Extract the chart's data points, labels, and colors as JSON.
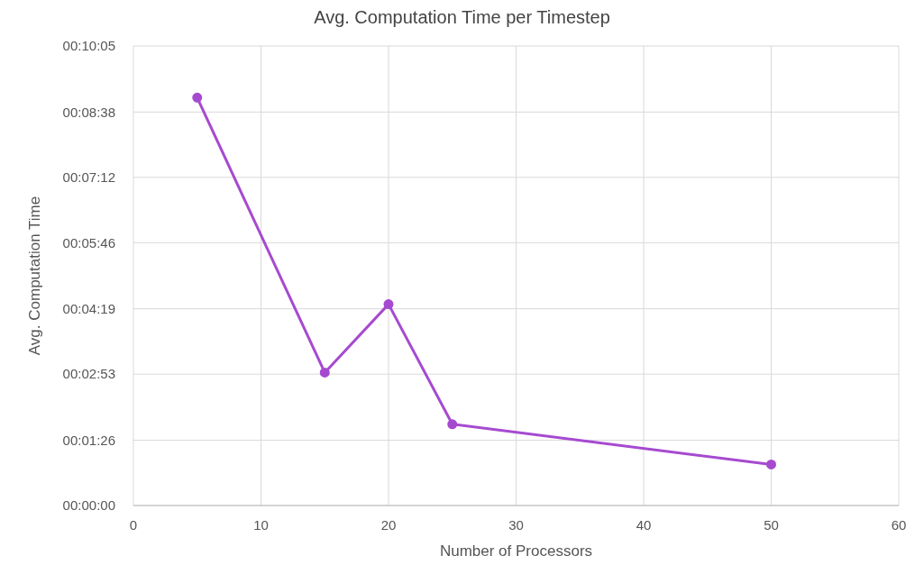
{
  "chart_data": {
    "type": "line",
    "title": "Avg. Computation Time per Timestep",
    "xlabel": "Number of Processors",
    "ylabel": "Avg. Computation Time",
    "x": [
      5,
      15,
      20,
      25,
      50
    ],
    "series": [
      {
        "color": "#a64ad0",
        "values": [
          537,
          175,
          265,
          107,
          54
        ]
      }
    ],
    "xlim": [
      0,
      60
    ],
    "xticks": [
      0,
      10,
      20,
      30,
      40,
      50,
      60
    ],
    "ylim": [
      0,
      605
    ],
    "yticks": [
      {
        "value": 0,
        "label": "00:00:00"
      },
      {
        "value": 86,
        "label": "00:01:26"
      },
      {
        "value": 173,
        "label": "00:02:53"
      },
      {
        "value": 259,
        "label": "00:04:19"
      },
      {
        "value": 346,
        "label": "00:05:46"
      },
      {
        "value": 432,
        "label": "00:07:12"
      },
      {
        "value": 518,
        "label": "00:08:38"
      },
      {
        "value": 605,
        "label": "00:10:05"
      }
    ],
    "grid": true,
    "marker": "circle",
    "line_style": "solid",
    "legend": false
  }
}
